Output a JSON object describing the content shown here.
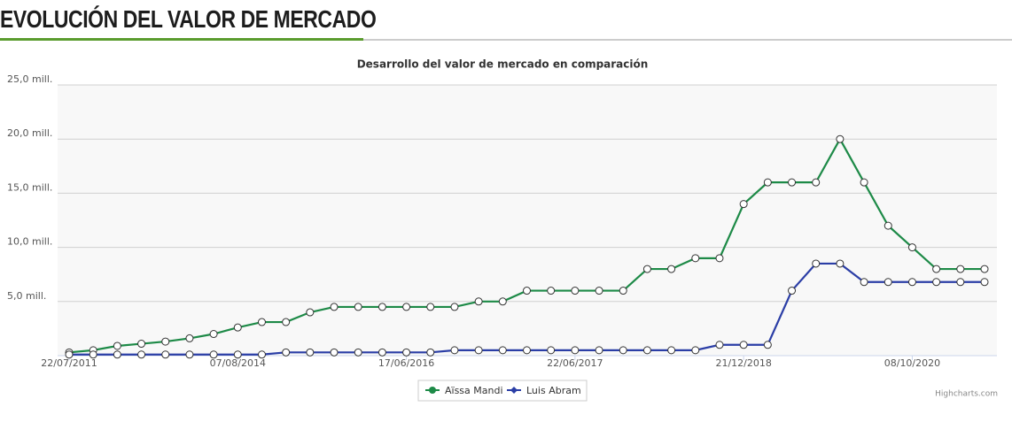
{
  "header": {
    "title": "EVOLUCIÓN DEL VALOR DE MERCADO"
  },
  "chart_data": {
    "type": "line",
    "title": "Desarrollo del valor de mercado en comparación",
    "categories": [
      "22/07/2011",
      null,
      null,
      null,
      null,
      null,
      null,
      "07/08/2014",
      null,
      null,
      null,
      null,
      null,
      null,
      "17/06/2016",
      null,
      null,
      null,
      null,
      null,
      null,
      "22/06/2017",
      null,
      null,
      null,
      null,
      null,
      null,
      "21/12/2018",
      null,
      null,
      null,
      null,
      null,
      null,
      "08/10/2020",
      null,
      null,
      null
    ],
    "series": [
      {
        "name": "Aïssa Mandi",
        "color": "#1d8a47",
        "values": [
          0.3,
          0.5,
          0.9,
          1.1,
          1.3,
          1.6,
          2,
          2.6,
          3.1,
          3.1,
          4,
          4.5,
          4.5,
          4.5,
          4.5,
          4.5,
          4.5,
          5,
          5,
          6,
          6,
          6,
          6,
          6,
          8,
          8,
          9,
          9,
          14,
          16,
          16,
          16,
          20,
          16,
          12,
          10,
          8,
          8,
          8
        ]
      },
      {
        "name": "Luis Abram",
        "color": "#2b3ea6",
        "values": [
          0.1,
          0.1,
          0.1,
          0.1,
          0.1,
          0.1,
          0.1,
          0.1,
          0.1,
          0.3,
          0.3,
          0.3,
          0.3,
          0.3,
          0.3,
          0.3,
          0.5,
          0.5,
          0.5,
          0.5,
          0.5,
          0.5,
          0.5,
          0.5,
          0.5,
          0.5,
          0.5,
          1,
          1,
          1,
          6,
          8.5,
          8.5,
          6.8,
          6.8,
          6.8,
          6.8,
          6.8,
          6.8
        ]
      }
    ],
    "ylim": [
      0,
      25
    ],
    "yticks": [
      {
        "value": 5,
        "label": "5,0 mill."
      },
      {
        "value": 10,
        "label": "10,0 mill."
      },
      {
        "value": 15,
        "label": "15,0 mill."
      },
      {
        "value": 20,
        "label": "20,0 mill."
      },
      {
        "value": 25,
        "label": "25,0 mill."
      }
    ],
    "grid": true,
    "credits": "Highcharts.com"
  }
}
